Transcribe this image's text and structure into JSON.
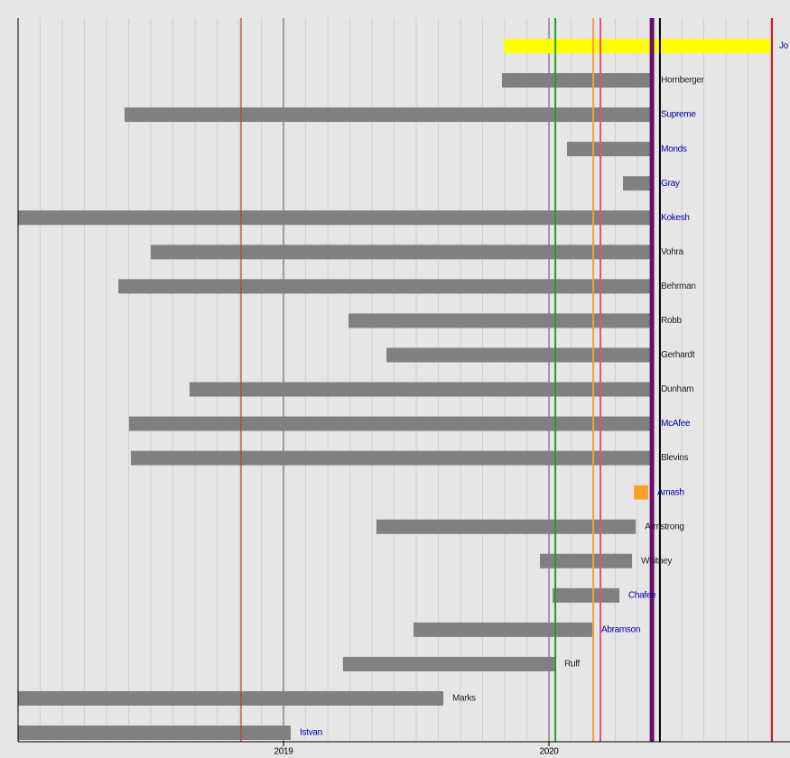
{
  "chart_data": {
    "type": "timeline",
    "xlim": [
      2018.0,
      2020.908
    ],
    "xticks": [
      2019,
      2020
    ],
    "xminor": [
      2018.083,
      2018.167,
      2018.25,
      2018.333,
      2018.417,
      2018.5,
      2018.583,
      2018.667,
      2018.75,
      2018.833,
      2018.917,
      2019.083,
      2019.167,
      2019.25,
      2019.333,
      2019.417,
      2019.5,
      2019.583,
      2019.667,
      2019.75,
      2019.833,
      2019.917,
      2020.083,
      2020.167,
      2020.25,
      2020.333,
      2020.417,
      2020.5,
      2020.583,
      2020.667,
      2020.75,
      2020.833
    ],
    "grid": true,
    "bars": [
      {
        "name": "Jo",
        "start": 2019.83,
        "end": 2020.833,
        "color": "#ffff00",
        "label_color": "#0000aa"
      },
      {
        "name": "Hornberger",
        "start": 2019.823,
        "end": 2020.388,
        "color": "#808080",
        "label_color": "#222222"
      },
      {
        "name": "Supreme",
        "start": 2018.401,
        "end": 2020.388,
        "color": "#808080",
        "label_color": "#0000aa"
      },
      {
        "name": "Monds",
        "start": 2020.068,
        "end": 2020.388,
        "color": "#808080",
        "label_color": "#0000aa"
      },
      {
        "name": "Gray",
        "start": 2020.279,
        "end": 2020.388,
        "color": "#808080",
        "label_color": "#0000aa"
      },
      {
        "name": "Kokesh",
        "start": 2018.0,
        "end": 2020.388,
        "color": "#808080",
        "label_color": "#0000aa"
      },
      {
        "name": "Vohra",
        "start": 2018.5,
        "end": 2020.388,
        "color": "#808080",
        "label_color": "#222222"
      },
      {
        "name": "Behrman",
        "start": 2018.378,
        "end": 2020.388,
        "color": "#808080",
        "label_color": "#222222"
      },
      {
        "name": "Robb",
        "start": 2019.245,
        "end": 2020.388,
        "color": "#808080",
        "label_color": "#222222"
      },
      {
        "name": "Gerhardt",
        "start": 2019.388,
        "end": 2020.388,
        "color": "#808080",
        "label_color": "#222222"
      },
      {
        "name": "Dunham",
        "start": 2018.646,
        "end": 2020.388,
        "color": "#808080",
        "label_color": "#222222"
      },
      {
        "name": "McAfee",
        "start": 2018.418,
        "end": 2020.388,
        "color": "#808080",
        "label_color": "#0000aa"
      },
      {
        "name": "Blevins",
        "start": 2018.425,
        "end": 2020.388,
        "color": "#808080",
        "label_color": "#222222"
      },
      {
        "name": "Amash",
        "start": 2020.32,
        "end": 2020.374,
        "color": "#ff9f2a",
        "label_color": "#0000aa"
      },
      {
        "name": "Armstrong",
        "start": 2019.35,
        "end": 2020.327,
        "color": "#808080",
        "label_color": "#222222"
      },
      {
        "name": "Whitney",
        "start": 2019.966,
        "end": 2020.313,
        "color": "#808080",
        "label_color": "#222222"
      },
      {
        "name": "Chafee",
        "start": 2020.014,
        "end": 2020.265,
        "color": "#808080",
        "label_color": "#0000aa"
      },
      {
        "name": "Abramson",
        "start": 2019.49,
        "end": 2020.163,
        "color": "#808080",
        "label_color": "#0000aa"
      },
      {
        "name": "Ruff",
        "start": 2019.224,
        "end": 2020.024,
        "color": "#808080",
        "label_color": "#222222"
      },
      {
        "name": "Marks",
        "start": 2018.0,
        "end": 2019.602,
        "color": "#808080",
        "label_color": "#222222"
      },
      {
        "name": "Istvan",
        "start": 2018.0,
        "end": 2019.027,
        "color": "#808080",
        "label_color": "#0000aa"
      }
    ],
    "markers": [
      {
        "x": 2018.84,
        "color": "#c0392b",
        "weight": "thin"
      },
      {
        "x": 2020.024,
        "color": "#22a022",
        "weight": "medium"
      },
      {
        "x": 2020.167,
        "color": "#f0a040",
        "weight": "medium"
      },
      {
        "x": 2020.194,
        "color": "#e8507a",
        "weight": "medium"
      },
      {
        "x": 2020.388,
        "color": "#6a0f6a",
        "weight": "thick"
      },
      {
        "x": 2020.418,
        "color": "#000000",
        "weight": "medium"
      },
      {
        "x": 2020.84,
        "color": "#dd1111",
        "weight": "medium"
      }
    ]
  }
}
